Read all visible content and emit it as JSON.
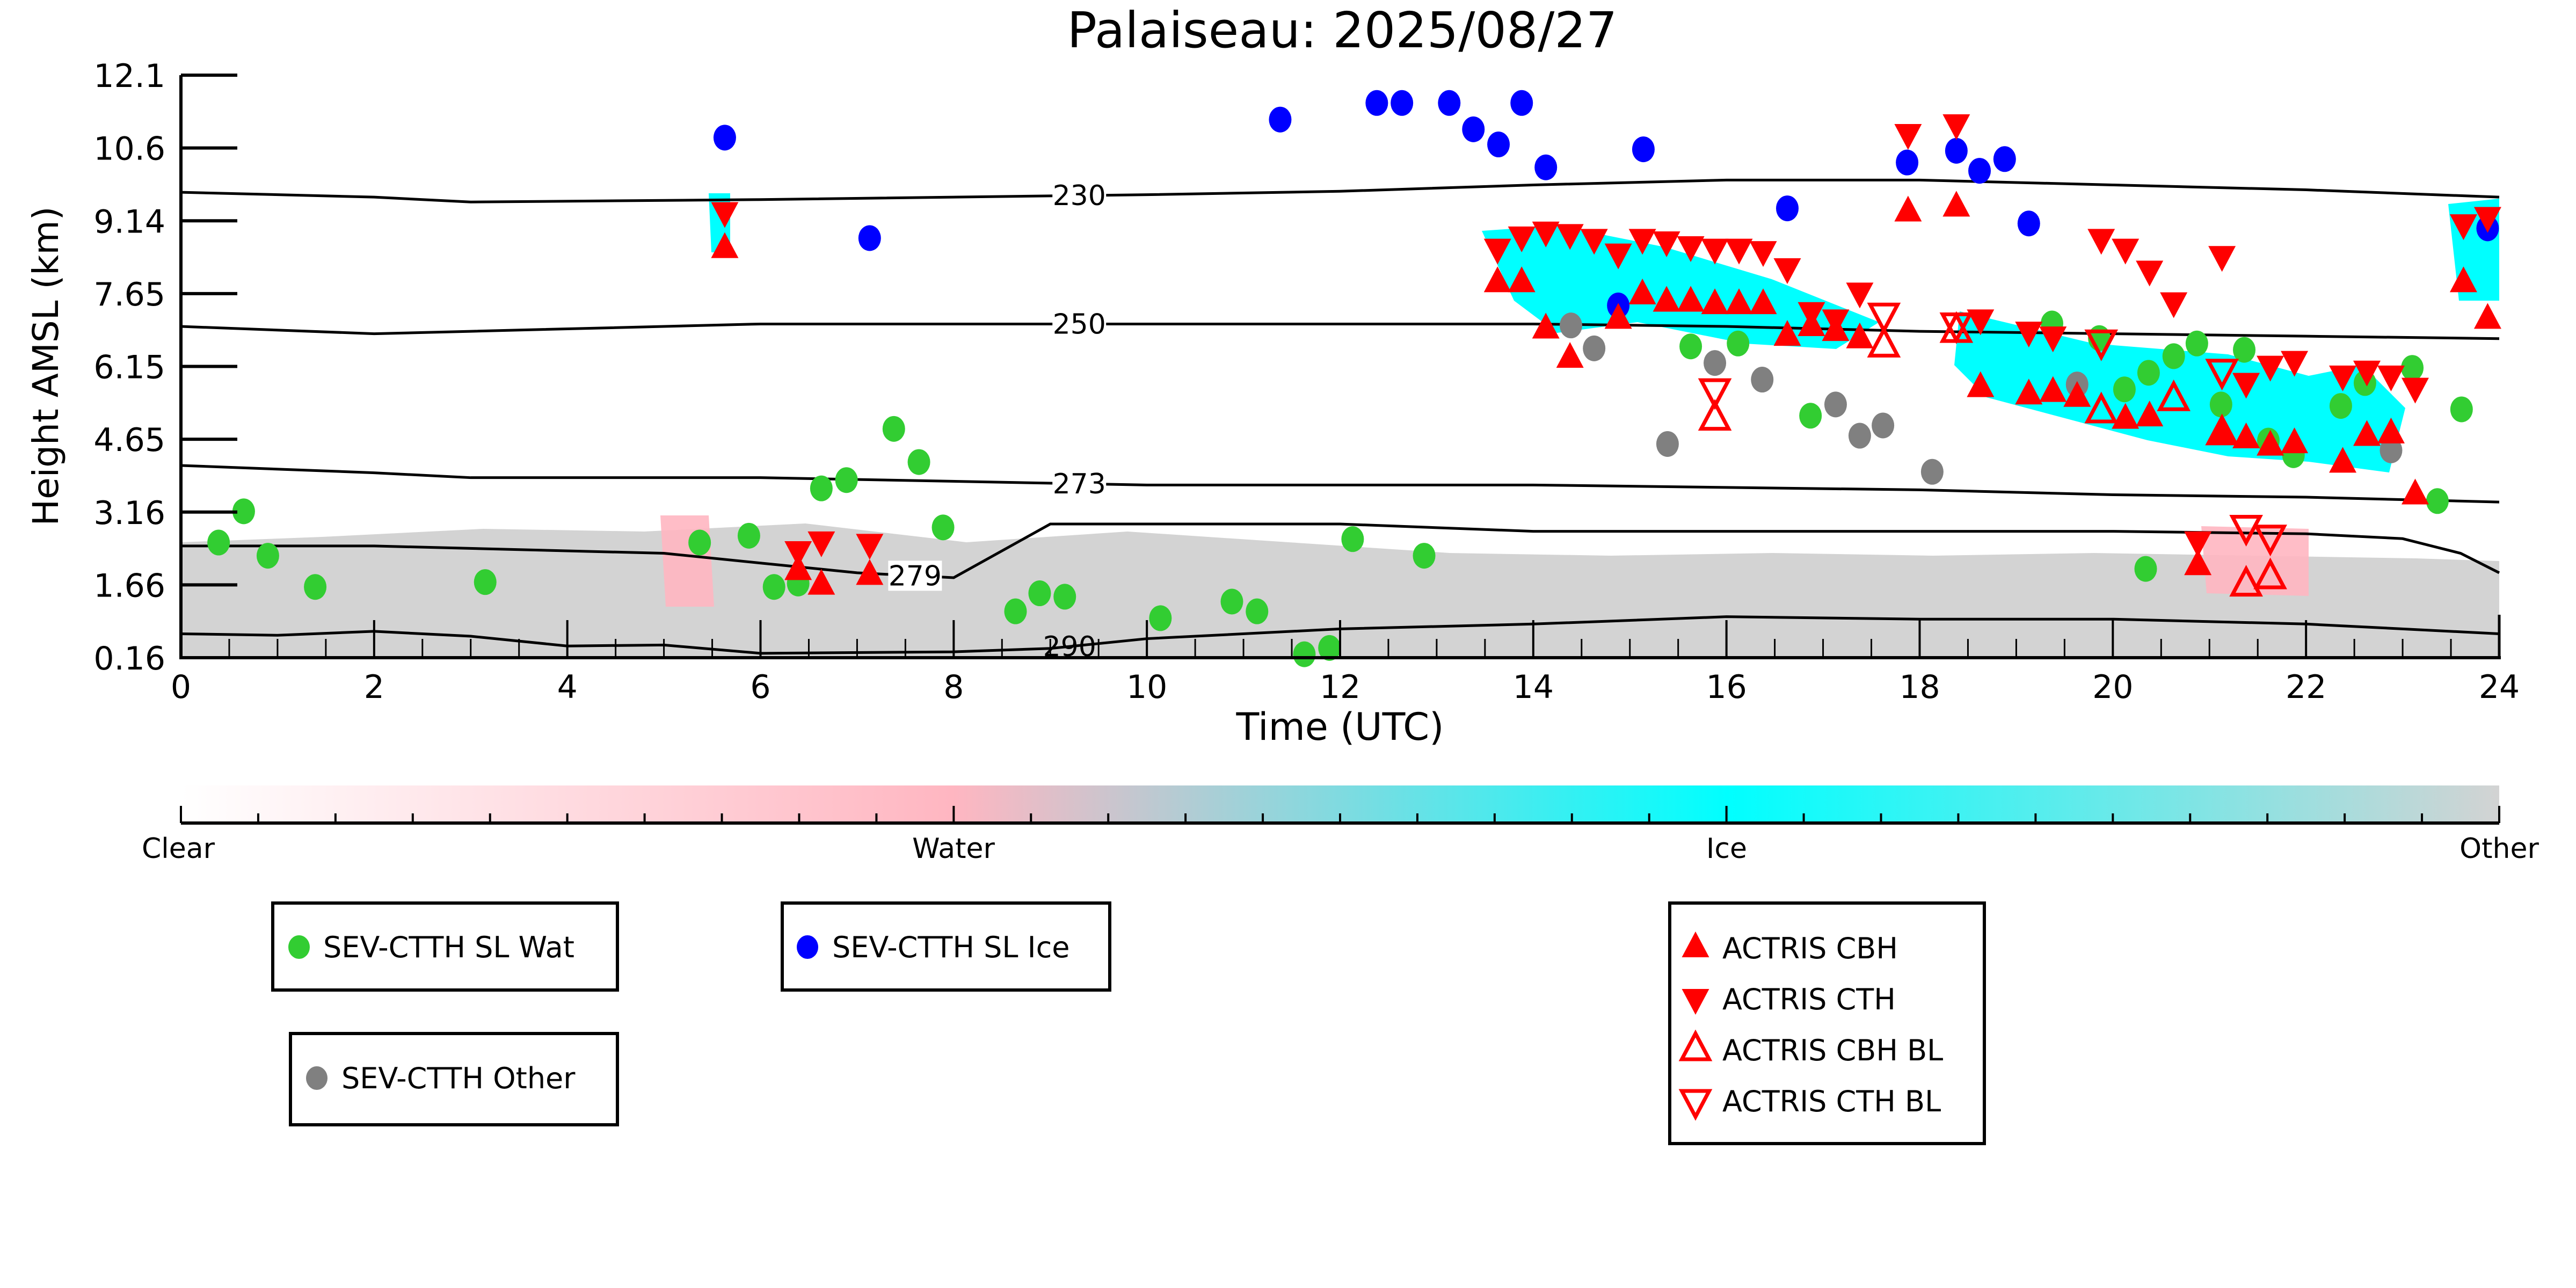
{
  "chart_data": {
    "type": "scatter",
    "title": "Palaiseau: 2025/08/27",
    "xlabel": "Time (UTC)",
    "ylabel": "Height AMSL (km)",
    "xlim": [
      0,
      24
    ],
    "ylim": [
      0.16,
      12.1
    ],
    "xticks": [
      "0",
      "2",
      "4",
      "6",
      "8",
      "10",
      "12",
      "14",
      "16",
      "18",
      "20",
      "22",
      "24"
    ],
    "yticks": [
      "0.16",
      "1.66",
      "3.16",
      "4.65",
      "6.15",
      "7.65",
      "9.14",
      "10.6",
      "12.1"
    ],
    "grid": false,
    "colorbar": {
      "labels": [
        "Clear",
        "Water",
        "Ice",
        "Other"
      ],
      "colors": [
        "#ffffff",
        "#ffb6c1",
        "#00ffff",
        "#d3d3d3"
      ]
    },
    "contours": [
      {
        "label": "230",
        "x": [
          0,
          2,
          3,
          6,
          10,
          12,
          14,
          16,
          18,
          20,
          22,
          24
        ],
        "y": [
          9.7,
          9.6,
          9.5,
          9.55,
          9.65,
          9.72,
          9.85,
          9.95,
          9.95,
          9.85,
          9.75,
          9.6
        ]
      },
      {
        "label": "250",
        "x": [
          0,
          2,
          3,
          6,
          10,
          14,
          16,
          18,
          20,
          22,
          24
        ],
        "y": [
          6.95,
          6.8,
          6.85,
          7.0,
          7.0,
          7.0,
          6.95,
          6.85,
          6.8,
          6.75,
          6.7
        ]
      },
      {
        "label": "273",
        "x": [
          0,
          2,
          3,
          6,
          10,
          14,
          16,
          18,
          20,
          22,
          24
        ],
        "y": [
          4.1,
          3.95,
          3.85,
          3.85,
          3.7,
          3.7,
          3.65,
          3.6,
          3.5,
          3.45,
          3.35
        ]
      },
      {
        "label": "279",
        "x": [
          0,
          2,
          5,
          6,
          7,
          8,
          9,
          12,
          14,
          16,
          18,
          20,
          22,
          23,
          23.6,
          24
        ],
        "y": [
          2.45,
          2.45,
          2.3,
          2.1,
          1.9,
          1.8,
          2.9,
          2.9,
          2.75,
          2.75,
          2.75,
          2.75,
          2.7,
          2.6,
          2.3,
          1.9
        ]
      },
      {
        "label": "290",
        "x": [
          0,
          1,
          2,
          3,
          4,
          5,
          6,
          8,
          9,
          10,
          12,
          14,
          16,
          18,
          20,
          22,
          24
        ],
        "y": [
          0.65,
          0.62,
          0.7,
          0.6,
          0.4,
          0.42,
          0.25,
          0.28,
          0.35,
          0.55,
          0.75,
          0.85,
          1.0,
          0.95,
          0.95,
          0.85,
          0.65
        ]
      }
    ],
    "series": [
      {
        "name": "SEV-CTTH SL Wat",
        "marker": "circle",
        "color": "#32cd32",
        "x": [
          0.39,
          0.65,
          0.9,
          1.39,
          3.15,
          5.37,
          5.88,
          6.14,
          6.39,
          6.63,
          6.89,
          7.38,
          7.64,
          7.89,
          8.64,
          8.89,
          9.15,
          10.14,
          10.88,
          11.14,
          11.63,
          11.89,
          12.13,
          12.87,
          15.63,
          16.12,
          16.87,
          19.37,
          19.86,
          20.12,
          20.37,
          20.63,
          20.87,
          21.12,
          21.36,
          21.61,
          21.87,
          22.36,
          22.61,
          23.1,
          23.36,
          23.61,
          20.34
        ],
        "y": [
          2.52,
          3.16,
          2.25,
          1.61,
          1.71,
          2.52,
          2.66,
          1.61,
          1.68,
          3.63,
          3.8,
          4.85,
          4.17,
          2.83,
          1.11,
          1.48,
          1.41,
          0.97,
          1.31,
          1.11,
          0.23,
          0.36,
          2.59,
          2.25,
          6.54,
          6.6,
          5.12,
          7.01,
          6.71,
          5.66,
          6.0,
          6.34,
          6.6,
          5.35,
          6.47,
          4.61,
          4.31,
          5.32,
          5.79,
          6.1,
          3.37,
          5.25,
          1.98
        ]
      },
      {
        "name": "SEV-CTTH SL Ice",
        "marker": "circle",
        "color": "#0000ff",
        "x": [
          5.63,
          7.13,
          11.38,
          12.38,
          12.64,
          13.13,
          13.38,
          13.64,
          13.88,
          14.13,
          14.88,
          15.14,
          16.63,
          17.87,
          18.38,
          18.62,
          18.88,
          19.13,
          23.88
        ],
        "y": [
          10.82,
          8.76,
          11.19,
          11.53,
          11.53,
          11.53,
          10.99,
          10.68,
          11.53,
          10.21,
          7.38,
          10.58,
          9.37,
          10.31,
          10.55,
          10.14,
          10.38,
          9.06,
          8.96
        ]
      },
      {
        "name": "SEV-CTTH Other",
        "marker": "circle",
        "color": "#808080",
        "x": [
          14.39,
          14.63,
          15.39,
          15.88,
          16.37,
          17.13,
          17.38,
          17.62,
          18.13,
          19.63,
          22.88
        ],
        "y": [
          6.97,
          6.5,
          4.54,
          6.2,
          5.86,
          5.35,
          4.71,
          4.92,
          3.97,
          5.76,
          4.41
        ]
      },
      {
        "name": "ACTRIS CBH",
        "marker": "triangle-up",
        "color": "#ff0000",
        "x": [
          5.63,
          6.39,
          6.63,
          7.13,
          13.63,
          13.88,
          14.13,
          14.38,
          14.88,
          15.13,
          15.38,
          15.63,
          15.88,
          16.13,
          16.38,
          16.63,
          16.88,
          17.13,
          17.38,
          17.88,
          18.38,
          19.13,
          19.38,
          19.63,
          20.13,
          20.38,
          21.13,
          21.38,
          21.63,
          21.88,
          22.38,
          22.63,
          22.88,
          23.13,
          23.63,
          23.88,
          18.63,
          20.88
        ],
        "y": [
          8.55,
          1.95,
          1.65,
          1.85,
          7.85,
          7.85,
          6.9,
          6.3,
          7.1,
          7.6,
          7.45,
          7.45,
          7.4,
          7.4,
          7.4,
          6.75,
          6.95,
          6.85,
          6.7,
          9.3,
          9.4,
          5.55,
          5.6,
          5.5,
          5.05,
          5.1,
          4.75,
          4.65,
          4.5,
          4.55,
          4.15,
          4.7,
          4.75,
          3.5,
          7.85,
          7.1,
          5.7,
          2.05
        ]
      },
      {
        "name": "ACTRIS CTH",
        "marker": "triangle-down",
        "color": "#ff0000",
        "x": [
          5.63,
          6.39,
          6.63,
          7.13,
          13.63,
          13.88,
          14.13,
          14.38,
          14.63,
          14.88,
          15.13,
          15.38,
          15.63,
          15.88,
          16.13,
          16.38,
          16.63,
          16.88,
          17.13,
          17.38,
          17.88,
          18.38,
          18.63,
          19.13,
          19.38,
          19.88,
          20.13,
          20.38,
          20.63,
          21.13,
          21.38,
          21.63,
          21.88,
          22.38,
          22.63,
          22.88,
          23.13,
          23.63,
          23.88,
          20.88
        ],
        "y": [
          9.3,
          2.35,
          2.55,
          2.5,
          8.55,
          8.8,
          8.9,
          8.85,
          8.75,
          8.45,
          8.75,
          8.7,
          8.6,
          8.55,
          8.55,
          8.5,
          8.15,
          7.25,
          7.1,
          7.65,
          10.9,
          11.1,
          7.1,
          6.85,
          6.75,
          8.75,
          8.55,
          8.1,
          7.45,
          8.4,
          5.8,
          6.15,
          6.25,
          5.95,
          6.05,
          5.95,
          5.7,
          9.05,
          9.2,
          2.55
        ]
      },
      {
        "name": "ACTRIS CBH BL",
        "marker": "triangle-up-open",
        "color": "#ff0000",
        "x": [
          15.88,
          17.63,
          18.38,
          19.88,
          20.63,
          21.13,
          21.38,
          21.63
        ],
        "y": [
          5.05,
          6.55,
          6.85,
          5.2,
          5.45,
          4.75,
          1.65,
          1.8
        ]
      },
      {
        "name": "ACTRIS CTH BL",
        "marker": "triangle-down-open",
        "color": "#ff0000",
        "x": [
          15.88,
          17.63,
          18.38,
          19.88,
          21.13,
          21.38,
          21.63
        ],
        "y": [
          5.65,
          7.2,
          7.0,
          6.65,
          6.05,
          2.85,
          2.65
        ]
      }
    ]
  },
  "legends": {
    "wat": {
      "label": "SEV-CTTH SL Wat",
      "color": "#32cd32"
    },
    "ice": {
      "label": "SEV-CTTH SL Ice",
      "color": "#0000ff"
    },
    "other": {
      "label": "SEV-CTTH Other",
      "color": "#808080"
    },
    "actris": [
      {
        "label": "ACTRIS CBH",
        "marker": "triangle-up"
      },
      {
        "label": "ACTRIS CTH",
        "marker": "triangle-down"
      },
      {
        "label": "ACTRIS CBH BL",
        "marker": "triangle-up-open"
      },
      {
        "label": "ACTRIS CTH BL",
        "marker": "triangle-down-open"
      }
    ]
  }
}
